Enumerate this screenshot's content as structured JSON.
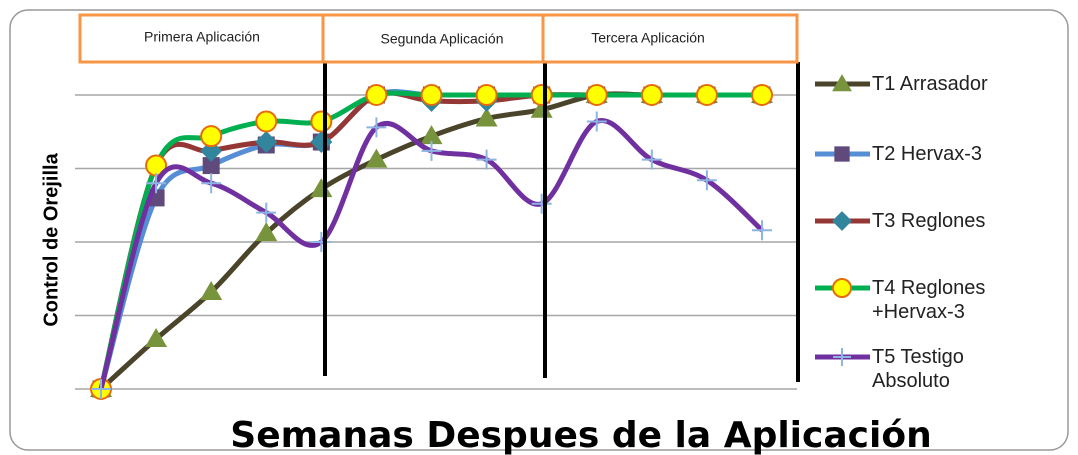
{
  "chart_data": {
    "type": "line",
    "x_label": "Semanas Despues de la Aplicación",
    "y_label": "Control de Orejilla",
    "annotations": [
      "Primera Aplicación",
      "Segunda  Aplicación",
      "Tercera Aplicación"
    ],
    "categories": [
      null,
      null,
      null,
      null,
      null,
      null,
      null,
      null,
      null,
      null,
      null,
      null,
      null
    ],
    "ylim": [
      0,
      100
    ],
    "yticks": [
      0,
      25,
      50,
      75,
      100
    ],
    "grid": true,
    "smooth": true,
    "legend": "right",
    "series": [
      {
        "name": "T1 Arrasador",
        "color": "#4a452a",
        "marker": "triangle",
        "marker_color": "#77933c",
        "values": [
          0,
          17,
          33,
          53,
          68,
          78,
          86,
          92,
          95,
          100,
          100,
          100,
          100
        ]
      },
      {
        "name": "T2 Hervax-3",
        "color": "#558ed5",
        "marker": "square",
        "marker_color": "#604a7b",
        "values": [
          0,
          65,
          76,
          83,
          84,
          100,
          100,
          100,
          100,
          100,
          100,
          100,
          100
        ]
      },
      {
        "name": "T3 Reglones",
        "color": "#953735",
        "marker": "diamond",
        "marker_color": "#31859c",
        "values": [
          0,
          76,
          81,
          84,
          84,
          100,
          98,
          98,
          100,
          100,
          100,
          100,
          100
        ]
      },
      {
        "name": "T4 Reglones +Hervax-3",
        "color": "#00b050",
        "marker": "circle",
        "marker_color": "#ffff00",
        "values": [
          0,
          76,
          86,
          91,
          91,
          100,
          100,
          100,
          100,
          100,
          100,
          100,
          100
        ]
      },
      {
        "name": "T5 Testigo Absoluto",
        "color": "#7030a0",
        "marker": "plus",
        "marker_color": "#8eb4e3",
        "values": [
          0,
          70,
          70,
          60,
          50,
          89,
          81,
          78,
          63,
          91,
          78,
          71,
          54
        ]
      }
    ]
  }
}
